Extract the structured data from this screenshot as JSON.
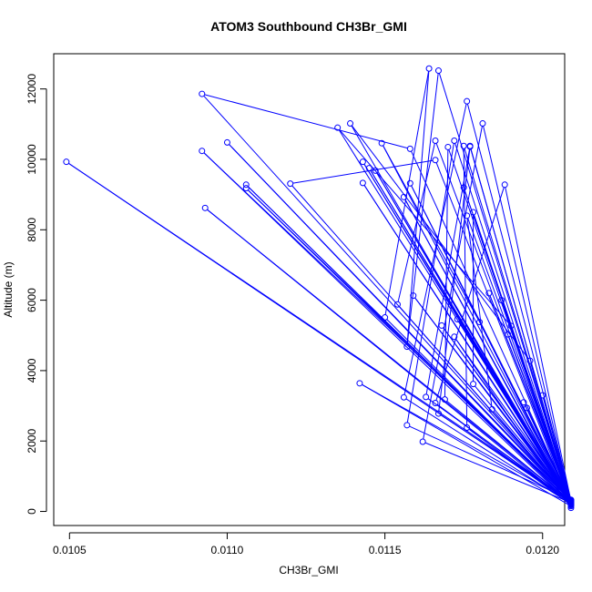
{
  "chart_data": {
    "type": "line",
    "title": "ATOM3 Southbound CH3Br_GMI",
    "xlabel": "CH3Br_GMI",
    "ylabel": "Altitude (m)",
    "xlim": [
      0.01045,
      0.01207
    ],
    "ylim": [
      -400,
      13000
    ],
    "xticks": [
      0.0105,
      0.011,
      0.0115,
      0.012
    ],
    "xtick_labels": [
      "0.0105",
      "0.0110",
      "0.0115",
      "0.0120"
    ],
    "yticks": [
      0,
      2000,
      4000,
      6000,
      8000,
      10000,
      12000
    ],
    "ytick_labels": [
      "0",
      "2000",
      "4000",
      "6000",
      "8000",
      "10000",
      "12000"
    ],
    "grid": false,
    "series": [
      {
        "color": "#0000ff",
        "marker": "open-circle",
        "points": [
          [
            0.01209,
            300
          ],
          [
            0.01049,
            9930
          ],
          [
            0.01209,
            250
          ],
          [
            0.01093,
            8620
          ],
          [
            0.01209,
            200
          ],
          [
            0.01092,
            10240
          ],
          [
            0.01209,
            320
          ],
          [
            0.011,
            10480
          ],
          [
            0.01209,
            280
          ],
          [
            0.01092,
            11860
          ],
          [
            0.01158,
            10300
          ],
          [
            0.01209,
            260
          ],
          [
            0.01106,
            9280
          ],
          [
            0.01209,
            230
          ],
          [
            0.01106,
            9180
          ],
          [
            0.01209,
            310
          ],
          [
            0.0112,
            9310
          ],
          [
            0.01166,
            9980
          ],
          [
            0.01209,
            150
          ],
          [
            0.01142,
            3640
          ],
          [
            0.01209,
            270
          ],
          [
            0.01135,
            10900
          ],
          [
            0.0119,
            5270
          ],
          [
            0.01209,
            190
          ],
          [
            0.01139,
            11020
          ],
          [
            0.01196,
            4280
          ],
          [
            0.01209,
            290
          ],
          [
            0.01143,
            9930
          ],
          [
            0.01209,
            220
          ],
          [
            0.01143,
            9330
          ],
          [
            0.01209,
            260
          ],
          [
            0.01149,
            10460
          ],
          [
            0.0118,
            5380
          ],
          [
            0.01209,
            300
          ],
          [
            0.01145,
            9750
          ],
          [
            0.01209,
            240
          ],
          [
            0.0115,
            5510
          ],
          [
            0.01164,
            12580
          ],
          [
            0.01157,
            4680
          ],
          [
            0.01167,
            12520
          ],
          [
            0.01209,
            280
          ],
          [
            0.01154,
            5880
          ],
          [
            0.01166,
            10530
          ],
          [
            0.01209,
            210
          ],
          [
            0.01156,
            3240
          ],
          [
            0.01176,
            11650
          ],
          [
            0.01209,
            330
          ],
          [
            0.01157,
            2450
          ],
          [
            0.01172,
            10530
          ],
          [
            0.01209,
            250
          ],
          [
            0.01162,
            1980
          ],
          [
            0.01181,
            11020
          ],
          [
            0.01209,
            270
          ],
          [
            0.01163,
            3250
          ],
          [
            0.01177,
            10380
          ],
          [
            0.01209,
            230
          ],
          [
            0.01166,
            3080
          ],
          [
            0.01188,
            9280
          ],
          [
            0.01209,
            290
          ],
          [
            0.01167,
            2780
          ],
          [
            0.01177,
            10360
          ],
          [
            0.01209,
            260
          ],
          [
            0.01169,
            3180
          ],
          [
            0.0117,
            10350
          ],
          [
            0.01209,
            180
          ],
          [
            0.01176,
            2380
          ],
          [
            0.01175,
            10380
          ],
          [
            0.01209,
            300
          ],
          [
            0.01178,
            3620
          ],
          [
            0.01178,
            8500
          ],
          [
            0.01209,
            250
          ],
          [
            0.01184,
            2900
          ],
          [
            0.01176,
            8400
          ],
          [
            0.01209,
            280
          ],
          [
            0.01187,
            6000
          ],
          [
            0.01209,
            230
          ],
          [
            0.01183,
            6200
          ],
          [
            0.01209,
            270
          ],
          [
            0.01189,
            5030
          ],
          [
            0.01209,
            220
          ],
          [
            0.01194,
            3100
          ],
          [
            0.01209,
            310
          ],
          [
            0.01195,
            2940
          ],
          [
            0.01209,
            260
          ],
          [
            0.012,
            3300
          ],
          [
            0.01209,
            240
          ],
          [
            0.01156,
            8930
          ],
          [
            0.01209,
            200
          ],
          [
            0.01158,
            9320
          ],
          [
            0.01209,
            290
          ],
          [
            0.01168,
            5280
          ],
          [
            0.01209,
            250
          ],
          [
            0.01173,
            5460
          ],
          [
            0.01209,
            300
          ],
          [
            0.01147,
            9680
          ],
          [
            0.01209,
            220
          ],
          [
            0.01159,
            6130
          ],
          [
            0.01209,
            270
          ],
          [
            0.01175,
            9200
          ],
          [
            0.01209,
            310
          ],
          [
            0.01172,
            4960
          ],
          [
            0.01209,
            100
          ]
        ]
      }
    ]
  }
}
